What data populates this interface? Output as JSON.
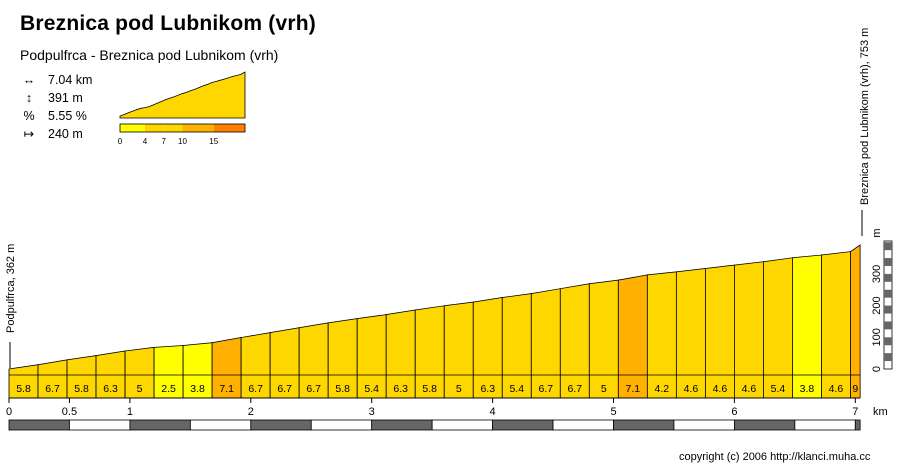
{
  "title": "Breznica pod Lubnikom (vrh)",
  "subtitle": "Podpulfrca - Breznica pod Lubnikom (vrh)",
  "stats": [
    {
      "icon": "distance-icon",
      "glyph": "↔",
      "text": "7.04 km"
    },
    {
      "icon": "elevation-gain-icon",
      "glyph": "↕",
      "text": "391 m"
    },
    {
      "icon": "gradient-icon",
      "glyph": "%",
      "text": "5.55 %"
    },
    {
      "icon": "segment-length-icon",
      "glyph": "↦",
      "text": "240 m"
    }
  ],
  "legend": {
    "ticks": [
      "0",
      "4",
      "7",
      "10",
      "15"
    ],
    "colors": [
      "#ffff00",
      "#ffd700",
      "#ffd700",
      "#ffb000",
      "#ff7f00"
    ]
  },
  "start_label": "Podpulfrca, 362 m",
  "end_label": "Breznica pod Lubnikom (vrh), 753 m",
  "copyright": "copyright (c) 2006 http://klanci.muha.cc",
  "colors": {
    "fill_default": "#ffd700",
    "fill_easy": "#ffff00",
    "fill_steep": "#ffb000",
    "bar_dark": "#666666"
  },
  "chart_data": {
    "type": "area",
    "xlabel": "km",
    "ylabel": "m",
    "xlim": [
      0,
      7.04
    ],
    "ylim_above_start": [
      0,
      391
    ],
    "x_ticks": [
      "0",
      "0.5",
      "1",
      "2",
      "3",
      "4",
      "5",
      "6",
      "7"
    ],
    "x_tick_values": [
      0,
      0.5,
      1,
      2,
      3,
      4,
      5,
      6,
      7
    ],
    "y_ticks": [
      "0",
      "100",
      "200",
      "300"
    ],
    "y_tick_values": [
      0,
      100,
      200,
      300
    ],
    "segment_km": 0.24,
    "segment_gradients": [
      "5.8",
      "6.7",
      "5.8",
      "6.3",
      "5",
      "2.5",
      "3.8",
      "7.1",
      "6.7",
      "6.7",
      "6.7",
      "5.8",
      "5.4",
      "6.3",
      "5.8",
      "5",
      "6.3",
      "5.4",
      "6.7",
      "6.7",
      "5",
      "7.1",
      "4.2",
      "4.6",
      "4.6",
      "4.6",
      "5.4",
      "3.8",
      "4.6",
      "9"
    ],
    "start_elevation_m": 362,
    "end_elevation_m": 753
  }
}
